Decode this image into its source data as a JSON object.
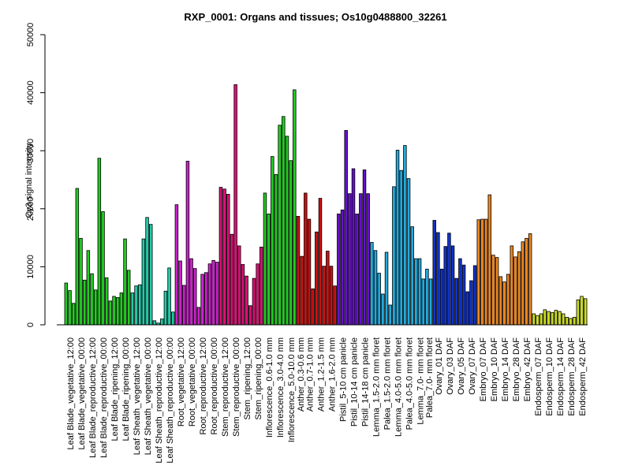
{
  "chart_data": {
    "type": "bar",
    "title": "RXP_0001: Organs and tissues; Os10g0488800_32261",
    "ylabel": "Cy3 signal intensity",
    "xlabel": "",
    "ylim": [
      0,
      50000
    ],
    "yticks": [
      0,
      10000,
      20000,
      30000,
      40000,
      50000
    ],
    "grid": false,
    "legend": "none",
    "groups": [
      {
        "color": "#22cc22",
        "bars": [
          7200,
          5900,
          3700
        ]
      },
      {
        "color": "#22cc22",
        "bars": [
          23500,
          14900,
          7700
        ]
      },
      {
        "color": "#22cc22",
        "bars": [
          12800,
          8800,
          6000
        ]
      },
      {
        "color": "#22cc22",
        "bars": [
          28700,
          19500,
          8100
        ]
      },
      {
        "color": "#22cc22",
        "bars": [
          4100,
          4900,
          4700
        ]
      },
      {
        "color": "#22cc22",
        "bars": [
          5500,
          14800,
          9400
        ]
      },
      {
        "color": "#22ccaa",
        "bars": [
          5500,
          6700,
          6900
        ]
      },
      {
        "color": "#22ccaa",
        "bars": [
          14800,
          18500,
          17300
        ]
      },
      {
        "color": "#22ccaa",
        "bars": [
          700,
          300,
          1000
        ]
      },
      {
        "color": "#22ccaa",
        "bars": [
          5800,
          9800,
          2200
        ]
      },
      {
        "color": "#cc22cc",
        "bars": [
          20700,
          11000,
          6800
        ]
      },
      {
        "color": "#cc22cc",
        "bars": [
          28200,
          11400,
          9700
        ]
      },
      {
        "color": "#cc22cc",
        "bars": [
          3000,
          8700,
          9000
        ]
      },
      {
        "color": "#cc22cc",
        "bars": [
          10500,
          11100,
          10800
        ]
      },
      {
        "color": "#dd1177",
        "bars": [
          23700,
          23400,
          22500
        ]
      },
      {
        "color": "#dd1177",
        "bars": [
          15600,
          41400,
          13600
        ]
      },
      {
        "color": "#dd1177",
        "bars": [
          10400,
          8400,
          3300
        ]
      },
      {
        "color": "#dd1177",
        "bars": [
          8000,
          10500,
          13400
        ]
      },
      {
        "color": "#22cc22",
        "bars": [
          22700,
          19100,
          29000
        ]
      },
      {
        "color": "#22cc22",
        "bars": [
          25900,
          34400,
          35900
        ]
      },
      {
        "color": "#22cc22",
        "bars": [
          32500,
          28300,
          40500
        ]
      },
      {
        "color": "#cc1111",
        "bars": [
          18700,
          11800
        ]
      },
      {
        "color": "#cc1111",
        "bars": [
          22700,
          18200,
          6200
        ]
      },
      {
        "color": "#cc1111",
        "bars": [
          16000,
          21800,
          10100
        ]
      },
      {
        "color": "#cc1111",
        "bars": [
          12700,
          10100,
          6700
        ]
      },
      {
        "color": "#6611cc",
        "bars": [
          19100,
          19800,
          33500
        ]
      },
      {
        "color": "#6611cc",
        "bars": [
          22600,
          26900,
          19100
        ]
      },
      {
        "color": "#6611cc",
        "bars": [
          22600,
          26700,
          22600
        ]
      },
      {
        "color": "#22aadd",
        "bars": [
          14200,
          12800,
          8900
        ]
      },
      {
        "color": "#22aadd",
        "bars": [
          5300,
          12500,
          3400
        ]
      },
      {
        "color": "#22aadd",
        "bars": [
          23800,
          30100,
          26600
        ]
      },
      {
        "color": "#22aadd",
        "bars": [
          30900,
          25200,
          16900
        ]
      },
      {
        "color": "#22aadd",
        "bars": [
          11400,
          11400,
          7900
        ]
      },
      {
        "color": "#22aadd",
        "bars": [
          9600,
          7900
        ]
      },
      {
        "color": "#1133cc",
        "bars": [
          18000,
          15900,
          9600
        ]
      },
      {
        "color": "#1133cc",
        "bars": [
          13500,
          15800,
          13600
        ]
      },
      {
        "color": "#1133cc",
        "bars": [
          8000,
          11400,
          10300
        ]
      },
      {
        "color": "#1133cc",
        "bars": [
          5700,
          7600,
          10200
        ]
      },
      {
        "color": "#ee8822",
        "bars": [
          18100,
          18200,
          18200
        ]
      },
      {
        "color": "#ee8822",
        "bars": [
          22400,
          12000,
          11600
        ]
      },
      {
        "color": "#ee8822",
        "bars": [
          8300,
          7400,
          8700
        ]
      },
      {
        "color": "#ee8822",
        "bars": [
          13600,
          11700,
          12600
        ]
      },
      {
        "color": "#ee8822",
        "bars": [
          14300,
          14900,
          15700
        ]
      },
      {
        "color": "#ccdd22",
        "bars": [
          1900,
          1600,
          1900
        ]
      },
      {
        "color": "#ccdd22",
        "bars": [
          2600,
          2300,
          2100
        ]
      },
      {
        "color": "#ccdd22",
        "bars": [
          2500,
          2300,
          1900
        ]
      },
      {
        "color": "#ccdd22",
        "bars": [
          1300,
          1100,
          1300
        ]
      },
      {
        "color": "#ccdd22",
        "bars": [
          4300,
          4900,
          4500
        ]
      }
    ],
    "categories": [
      "Leaf Blade_vegetative_12:00",
      "Leaf Blade_vegetative_00:00",
      "Leaf Blade_reproductive_12:00",
      "Leaf Blade_reproductive_00:00",
      "Leaf Blade_ripening_12:00",
      "Leaf Blade_ripening_00:00",
      "Leaf Sheath_vegetative_12:00",
      "Leaf Sheath_vegetative_00:00",
      "Leaf Sheath_reproductive_12:00",
      "Leaf Sheath_reproductive_00:00",
      "Root_vegetative_12:00",
      "Root_vegetative_00:00",
      "Root_reproductive_12:00",
      "Root_reproductive_00:00",
      "Stem_reproductive_12:00",
      "Stem_reproductive_00:00",
      "Stem_ripening_12:00",
      "Stem_ripening_00:00",
      "Inflorescence_0.6-1.0 mm",
      "Inflorescence_3.0-4.0 mm",
      "Inflorescence_5.0-10.0 mm",
      "Anther_0.3-0.6 mm",
      "Anther_0.7-1.0 mm",
      "Anther_1.2-1.5 mm",
      "Anther_1.6-2.0 mm",
      "Pistil_5-10 cm panicle",
      "Pistil_10-14 cm panicle",
      "Pistil_14-18 cm panicle",
      "Lemma_1.5-2.0 mm floret",
      "Palea_1.5-2.0 mm floret",
      "Lemma_4.0-5.0 mm floret",
      "Palea_4.0-5.0 mm floret",
      "Lemma_7.0- mm floret",
      "Palea_7.0- mm floret",
      "Ovary_01 DAF",
      "Ovary_03 DAF",
      "Ovary_05 DAF",
      "Ovary_07 DAF",
      "Embryo_07 DAF",
      "Embryo_10 DAF",
      "Embryo_14 DAF",
      "Embryo_28 DAF",
      "Embryo_42 DAF",
      "Endosperm_07 DAF",
      "Endosperm_10 DAF",
      "Endosperm_14 DAF",
      "Endosperm_28 DAF",
      "Endosperm_42 DAF"
    ]
  }
}
